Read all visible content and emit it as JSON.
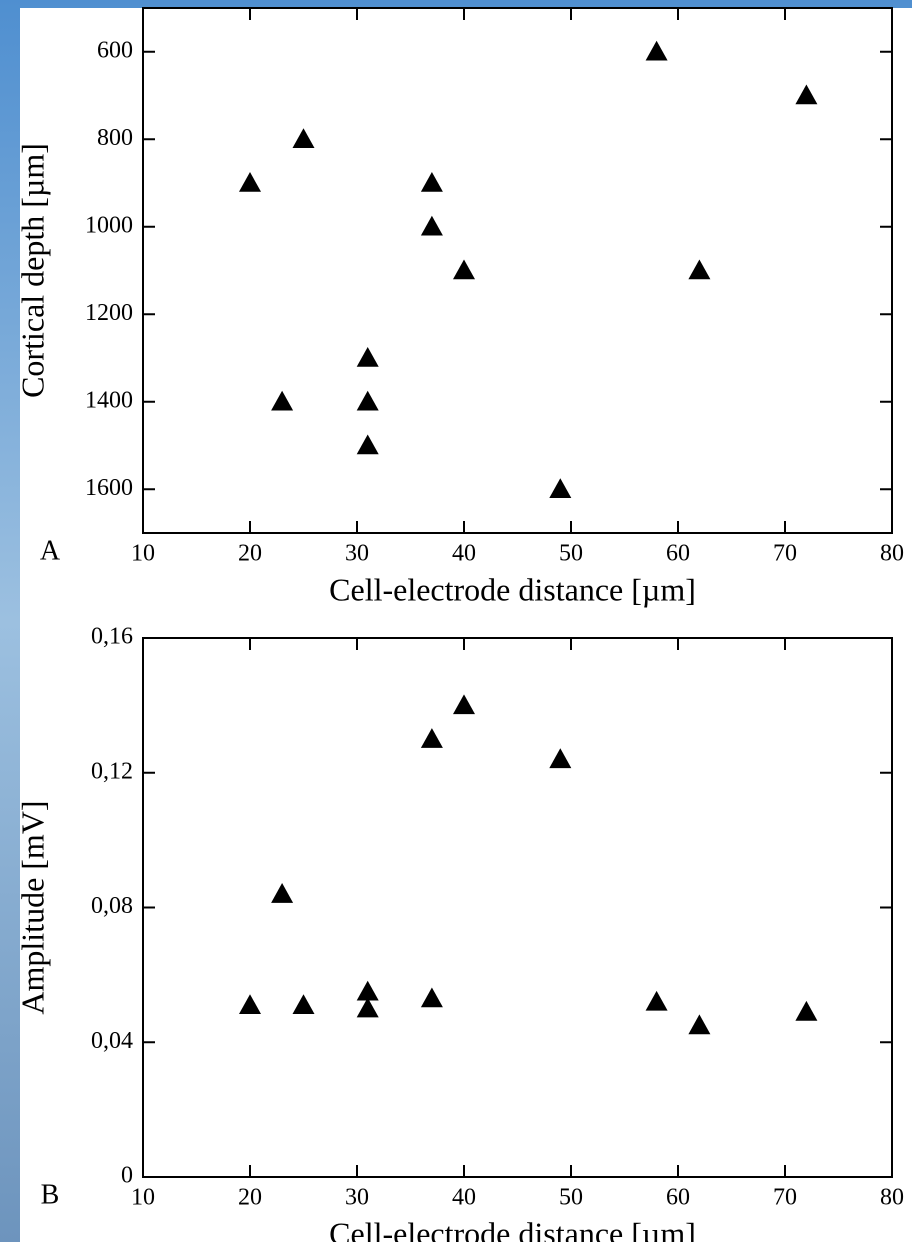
{
  "chart_data": [
    {
      "type": "scatter",
      "panel_label": "A",
      "x_label": "Cell-electrode distance [µm]",
      "y_label": "Cortical depth [µm]",
      "xlim": [
        10,
        80
      ],
      "xticks": [
        10,
        20,
        30,
        40,
        50,
        60,
        70,
        80
      ],
      "ylim": [
        500,
        1700
      ],
      "yticks": [
        600,
        800,
        1000,
        1200,
        1400,
        1600
      ],
      "y_inverted": true,
      "color": "#000000",
      "x": [
        20,
        25,
        37,
        37,
        40,
        58,
        72,
        62,
        31,
        23,
        31,
        31,
        49
      ],
      "values": [
        900,
        800,
        900,
        1000,
        1100,
        600,
        700,
        1100,
        1300,
        1400,
        1400,
        1500,
        1600
      ]
    },
    {
      "type": "scatter",
      "panel_label": "B",
      "x_label": "Cell-electrode distance [µm]",
      "y_label": "Amplitude [mV]",
      "xlim": [
        10,
        80
      ],
      "xticks": [
        10,
        20,
        30,
        40,
        50,
        60,
        70,
        80
      ],
      "ylim": [
        0,
        0.16
      ],
      "yticks": [
        0,
        {
          "value": 0.04,
          "label": "0,04"
        },
        {
          "value": 0.08,
          "label": "0,08"
        },
        {
          "value": 0.12,
          "label": "0,12"
        },
        {
          "value": 0.16,
          "label": "0,16"
        }
      ],
      "y_inverted": false,
      "color": "#000000",
      "x": [
        20,
        25,
        23,
        31,
        31,
        37,
        37,
        40,
        49,
        58,
        62,
        72
      ],
      "values": [
        0.051,
        0.051,
        0.084,
        0.055,
        0.05,
        0.053,
        0.13,
        0.14,
        0.124,
        0.052,
        0.045,
        0.049
      ]
    }
  ]
}
